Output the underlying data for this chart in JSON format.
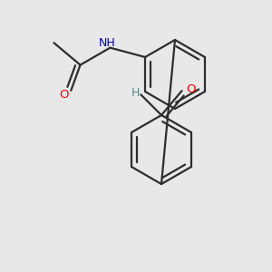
{
  "background_color": "#e8e8e8",
  "bond_color": "#2d2d2d",
  "atom_colors": {
    "O": "#ff0000",
    "N": "#0000bb",
    "H": "#5c8a8a",
    "C": "#2d2d2d"
  },
  "line_width": 1.6,
  "figsize": [
    3.0,
    3.0
  ],
  "dpi": 100
}
